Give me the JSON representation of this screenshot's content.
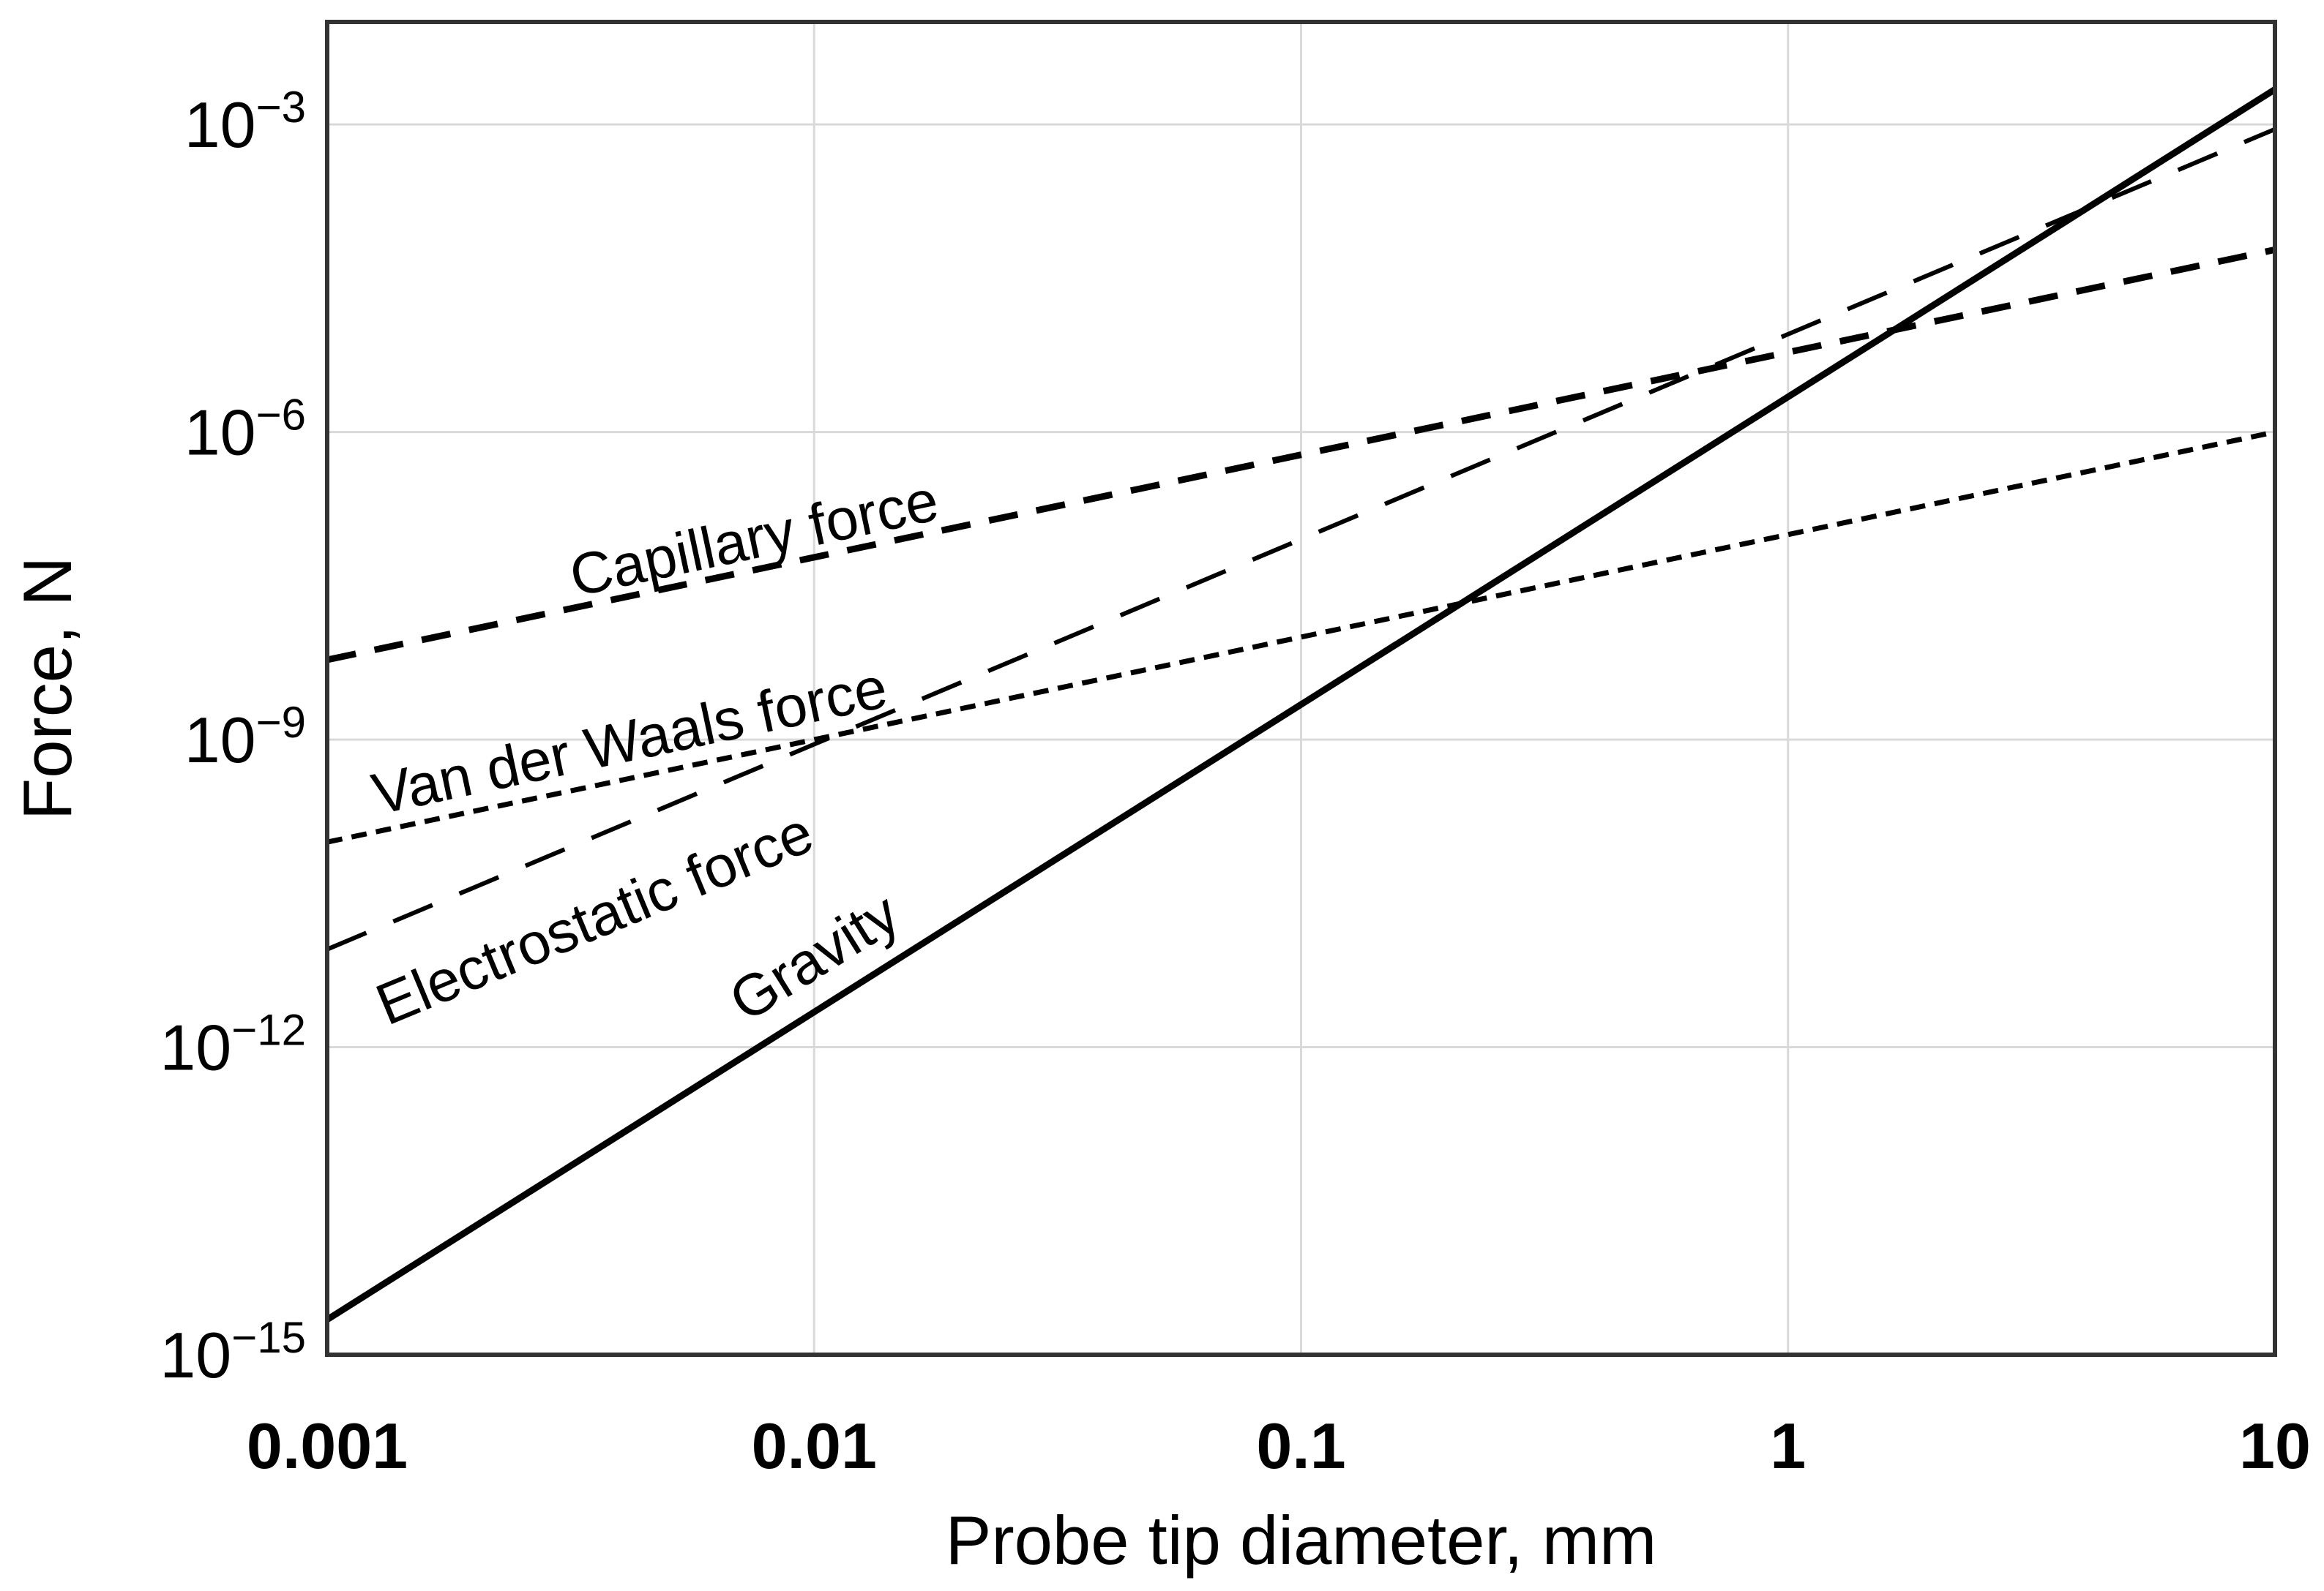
{
  "figure": {
    "background": "#ffffff",
    "axis_color": "#333333",
    "gridline_color": "#d9d9d9",
    "line_color": "#000000",
    "text_color": "#000000"
  },
  "axes": {
    "x": {
      "title": "Probe tip diameter, mm",
      "scale": "log",
      "min": 0.001,
      "max": 10,
      "ticks": [
        {
          "label": "0.001",
          "value": 0.001
        },
        {
          "label": "0.01",
          "value": 0.01
        },
        {
          "label": "0.1",
          "value": 0.1
        },
        {
          "label": "1",
          "value": 1
        },
        {
          "label": "10",
          "value": 10
        }
      ]
    },
    "y": {
      "title": "Force, N",
      "scale": "log",
      "min": 1e-15,
      "max": 0.01,
      "ticks": [
        {
          "mantissa": "10",
          "exponent": "−3",
          "value": 0.001
        },
        {
          "mantissa": "10",
          "exponent": "−6",
          "value": 1e-06
        },
        {
          "mantissa": "10",
          "exponent": "−9",
          "value": 1e-09
        },
        {
          "mantissa": "10",
          "exponent": "−12",
          "value": 1e-12
        },
        {
          "mantissa": "10",
          "exponent": "−15",
          "value": 1e-15
        }
      ]
    }
  },
  "chart_data": {
    "type": "line",
    "title": "",
    "xlabel": "Probe tip diameter, mm",
    "ylabel": "Force, N",
    "x_scale": "log",
    "y_scale": "log",
    "xlim": [
      0.001,
      10
    ],
    "ylim": [
      1e-15,
      0.01
    ],
    "grid": true,
    "legend": "inline-line-labels",
    "x": [
      0.001,
      0.01,
      0.1,
      1,
      10
    ],
    "series": [
      {
        "name": "Capillary force",
        "values": [
          6e-09,
          6e-08,
          6e-07,
          6e-06,
          6e-05
        ],
        "line_style": "dashed-medium",
        "label": {
          "x": 1030,
          "y": 735,
          "rotation": -12
        }
      },
      {
        "name": "Van der Waals force",
        "values": [
          1e-10,
          1e-09,
          1e-08,
          1e-07,
          1e-06
        ],
        "line_style": "dashed-short",
        "label": {
          "x": 860,
          "y": 1012,
          "rotation": -12
        }
      },
      {
        "name": "Electrostatic force",
        "values": [
          9e-12,
          9e-10,
          9e-08,
          9e-06,
          0.0009
        ],
        "line_style": "dashed-long",
        "label": {
          "x": 812,
          "y": 1255,
          "rotation": -22.5
        }
      },
      {
        "name": "Gravity",
        "values": [
          2.2e-15,
          2.2e-12,
          2.2e-09,
          2.2e-06,
          0.0022
        ],
        "line_style": "solid",
        "label": {
          "x": 1112,
          "y": 1308,
          "rotation": -32
        }
      }
    ]
  }
}
